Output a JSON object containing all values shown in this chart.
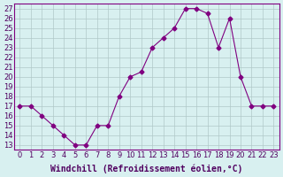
{
  "x": [
    0,
    1,
    2,
    3,
    4,
    5,
    6,
    7,
    8,
    9,
    10,
    11,
    12,
    13,
    14,
    15,
    16,
    17,
    18,
    19,
    20,
    21,
    22,
    23
  ],
  "y": [
    17,
    17,
    16,
    15,
    14,
    13,
    13,
    15,
    15,
    18,
    20,
    20.5,
    23,
    24,
    25,
    27,
    27,
    26.5,
    23,
    26,
    20,
    17,
    17,
    17
  ],
  "line_color": "#800080",
  "marker": "D",
  "marker_size": 2.5,
  "bg_color": "#d8f0f0",
  "grid_color": "#b0c8c8",
  "xlabel": "Windchill (Refroidissement éolien,°C)",
  "ylabel_ticks": [
    13,
    14,
    15,
    16,
    17,
    18,
    19,
    20,
    21,
    22,
    23,
    24,
    25,
    26,
    27
  ],
  "ylim": [
    12.5,
    27.5
  ],
  "xlim": [
    -0.5,
    23.5
  ],
  "tick_fontsize": 6.0,
  "xlabel_fontsize": 7.0
}
